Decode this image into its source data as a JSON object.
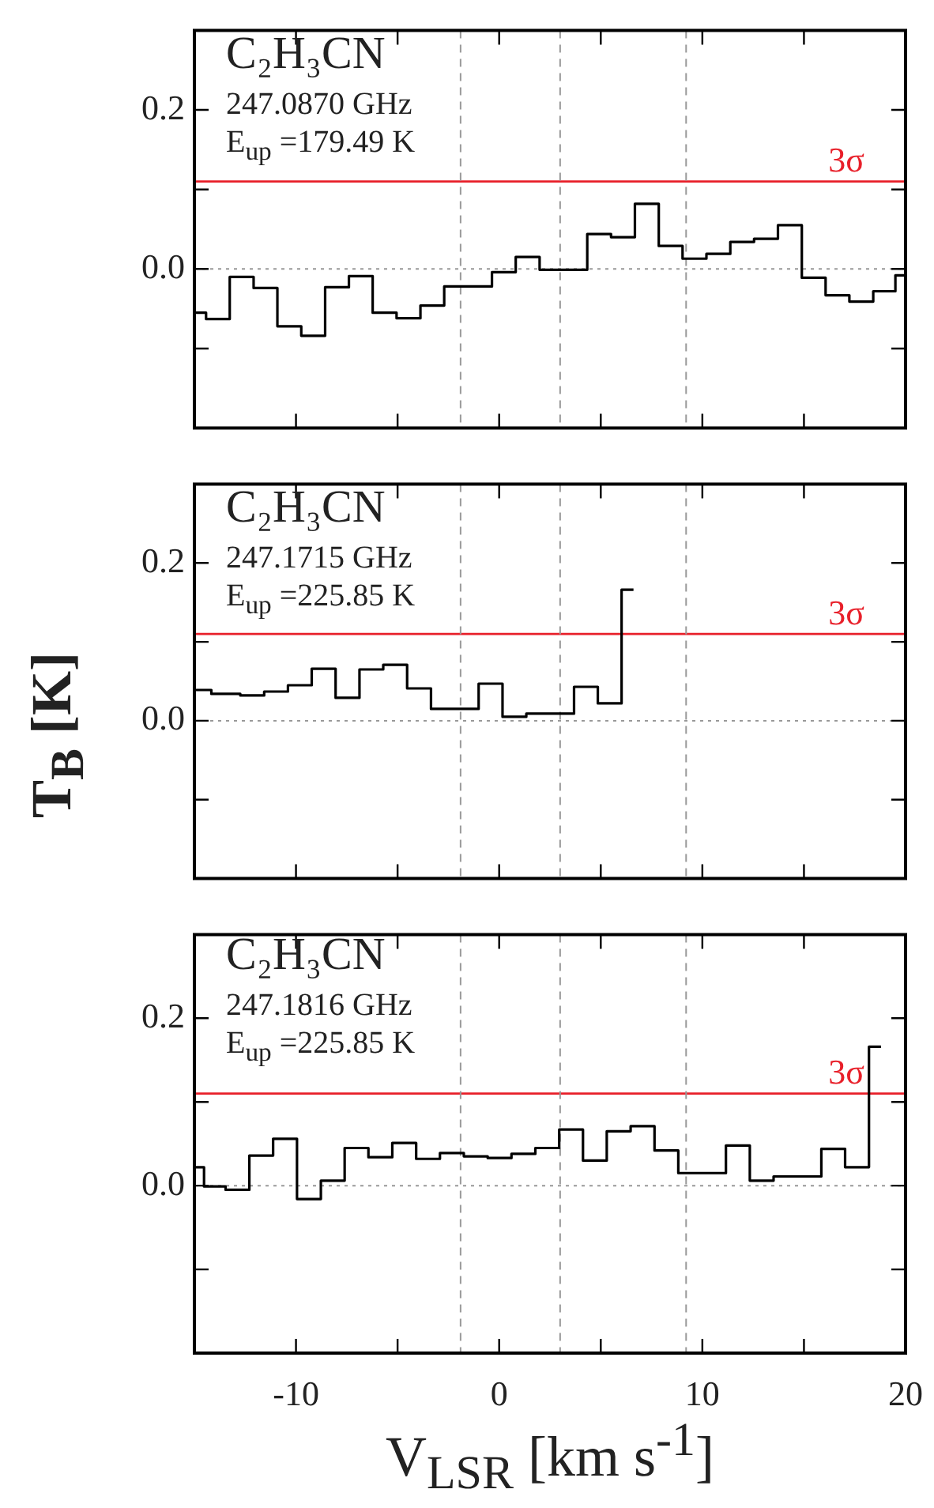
{
  "chart_data": [
    {
      "type": "step",
      "color": "#000000",
      "marker": "none",
      "grid": false,
      "legend": false,
      "tick_labels": "y",
      "xticks": [
        {
          "value": -10,
          "label": null
        },
        {
          "value": -5,
          "label": null
        },
        {
          "value": 0,
          "label": null
        },
        {
          "value": 5,
          "label": null
        },
        {
          "value": 10,
          "label": null
        },
        {
          "value": 15,
          "label": null
        },
        {
          "value": 20,
          "label": null
        }
      ],
      "x": [
        -15,
        -13.85,
        -12.67,
        -11.5,
        -10.33,
        -9.15,
        -7.98,
        -6.81,
        -5.64,
        -4.46,
        -3.29,
        -2.12,
        -0.94,
        0.23,
        1.4,
        2.58,
        3.75,
        4.92,
        6.09,
        7.27,
        8.44,
        9.61,
        10.79,
        11.96,
        13.13,
        14.31,
        15.48,
        16.65,
        17.82,
        19.0,
        20
      ],
      "values": [
        -0.055,
        -0.063,
        -0.01,
        -0.024,
        -0.072,
        -0.084,
        -0.023,
        -0.009,
        -0.055,
        -0.062,
        -0.046,
        -0.022,
        -0.022,
        -0.004,
        0.015,
        -0.001,
        -0.001,
        0.044,
        0.04,
        0.082,
        0.029,
        0.013,
        0.019,
        0.034,
        0.038,
        0.055,
        -0.011,
        -0.033,
        -0.041,
        -0.028,
        -0.008
      ],
      "xlim": [
        -15,
        20
      ],
      "ylim": [
        -0.2,
        0.3
      ],
      "yticks": [
        {
          "value": -0.1,
          "label": null
        },
        {
          "value": 0,
          "label": "0.0"
        },
        {
          "value": 0.1,
          "label": null
        },
        {
          "value": 0.2,
          "label": "0.2"
        }
      ],
      "ref_lines": [
        {
          "axis": "y",
          "value": 0.11,
          "label": "3σ",
          "color": "#e8202a",
          "line_style": "solid"
        },
        {
          "axis": "y",
          "value": 0,
          "color": "#999999",
          "line_style": "dotted"
        },
        {
          "axis": "x",
          "value": -1.9,
          "color": "#999999",
          "line_style": "dashed"
        },
        {
          "axis": "x",
          "value": 3.0,
          "color": "#999999",
          "line_style": "dashed"
        },
        {
          "axis": "x",
          "value": 9.2,
          "color": "#999999",
          "line_style": "dashed"
        }
      ],
      "annotations": [
        "C₂H₃CN",
        "247.0870 GHz",
        "E$_{up}$ =179.49 K"
      ]
    },
    {
      "type": "step",
      "color": "#000000",
      "marker": "none",
      "grid": false,
      "legend": false,
      "tick_labels": "y",
      "ylabel": "T$_{B}$ [K]",
      "xticks": [
        {
          "value": -10,
          "label": null
        },
        {
          "value": -5,
          "label": null
        },
        {
          "value": 0,
          "label": null
        },
        {
          "value": 5,
          "label": null
        },
        {
          "value": 10,
          "label": null
        },
        {
          "value": 15,
          "label": null
        },
        {
          "value": 20,
          "label": null
        }
      ],
      "x": [
        -15,
        -13.33,
        -12.15,
        -10.98,
        -9.81,
        -8.64,
        -7.46,
        -6.29,
        -5.12,
        -3.94,
        -2.77,
        -1.6,
        -0.42,
        0.75,
        1.92,
        3.1,
        4.27,
        5.44,
        6.61
      ],
      "values": [
        0.039,
        0.034,
        0.032,
        0.037,
        0.045,
        0.066,
        0.029,
        0.065,
        0.071,
        0.041,
        0.015,
        0.015,
        0.047,
        0.005,
        0.009,
        0.009,
        0.043,
        0.022,
        0.166
      ],
      "xlim": [
        -15,
        20
      ],
      "ylim": [
        -0.2,
        0.3
      ],
      "yticks": [
        {
          "value": -0.1,
          "label": null
        },
        {
          "value": 0,
          "label": "0.0"
        },
        {
          "value": 0.1,
          "label": null
        },
        {
          "value": 0.2,
          "label": "0.2"
        }
      ],
      "ref_lines": [
        {
          "axis": "y",
          "value": 0.11,
          "label": "3σ",
          "color": "#e8202a",
          "line_style": "solid"
        },
        {
          "axis": "y",
          "value": 0,
          "color": "#999999",
          "line_style": "dotted"
        },
        {
          "axis": "x",
          "value": -1.9,
          "color": "#999999",
          "line_style": "dashed"
        },
        {
          "axis": "x",
          "value": 3.0,
          "color": "#999999",
          "line_style": "dashed"
        },
        {
          "axis": "x",
          "value": 9.2,
          "color": "#999999",
          "line_style": "dashed"
        }
      ],
      "annotations": [
        "C₂H₃CN",
        "247.1715 GHz",
        "E$_{up}$ =225.85 K"
      ]
    },
    {
      "type": "step",
      "color": "#000000",
      "marker": "none",
      "grid": false,
      "legend": false,
      "xlabel": "V$_{LSR}$ [km s$^{-1}$]",
      "x": [
        -15,
        -14.05,
        -12.88,
        -11.71,
        -10.54,
        -9.36,
        -8.19,
        -7.02,
        -5.85,
        -4.67,
        -3.5,
        -2.33,
        -1.15,
        0.02,
        1.19,
        2.37,
        3.54,
        4.71,
        5.88,
        7.06,
        8.23,
        9.4,
        10.57,
        11.75,
        12.92,
        14.09,
        15.27,
        16.44,
        17.61,
        18.79
      ],
      "values": [
        0.022,
        -0.001,
        -0.005,
        0.036,
        0.056,
        -0.016,
        0.006,
        0.045,
        0.034,
        0.051,
        0.032,
        0.039,
        0.035,
        0.033,
        0.038,
        0.045,
        0.067,
        0.03,
        0.065,
        0.071,
        0.042,
        0.015,
        0.015,
        0.048,
        0.006,
        0.011,
        0.011,
        0.044,
        0.022,
        0.166
      ],
      "xlim": [
        -15,
        20
      ],
      "ylim": [
        -0.2,
        0.3
      ],
      "xticks": [
        {
          "value": -10,
          "label": "-10"
        },
        {
          "value": -5,
          "label": null
        },
        {
          "value": 0,
          "label": "0"
        },
        {
          "value": 5,
          "label": null
        },
        {
          "value": 10,
          "label": "10"
        },
        {
          "value": 15,
          "label": null
        },
        {
          "value": 20,
          "label": "20"
        }
      ],
      "yticks": [
        {
          "value": -0.1,
          "label": null
        },
        {
          "value": 0,
          "label": "0.0"
        },
        {
          "value": 0.1,
          "label": null
        },
        {
          "value": 0.2,
          "label": "0.2"
        }
      ],
      "ref_lines": [
        {
          "axis": "y",
          "value": 0.11,
          "label": "3σ",
          "color": "#e8202a",
          "line_style": "solid"
        },
        {
          "axis": "y",
          "value": 0,
          "color": "#999999",
          "line_style": "dotted"
        },
        {
          "axis": "x",
          "value": -1.9,
          "color": "#999999",
          "line_style": "dashed"
        },
        {
          "axis": "x",
          "value": 3.0,
          "color": "#999999",
          "line_style": "dashed"
        },
        {
          "axis": "x",
          "value": 9.2,
          "color": "#999999",
          "line_style": "dashed"
        }
      ],
      "annotations": [
        "C₂H₃CN",
        "247.1816 GHz",
        "E$_{up}$ =225.85 K"
      ]
    }
  ]
}
